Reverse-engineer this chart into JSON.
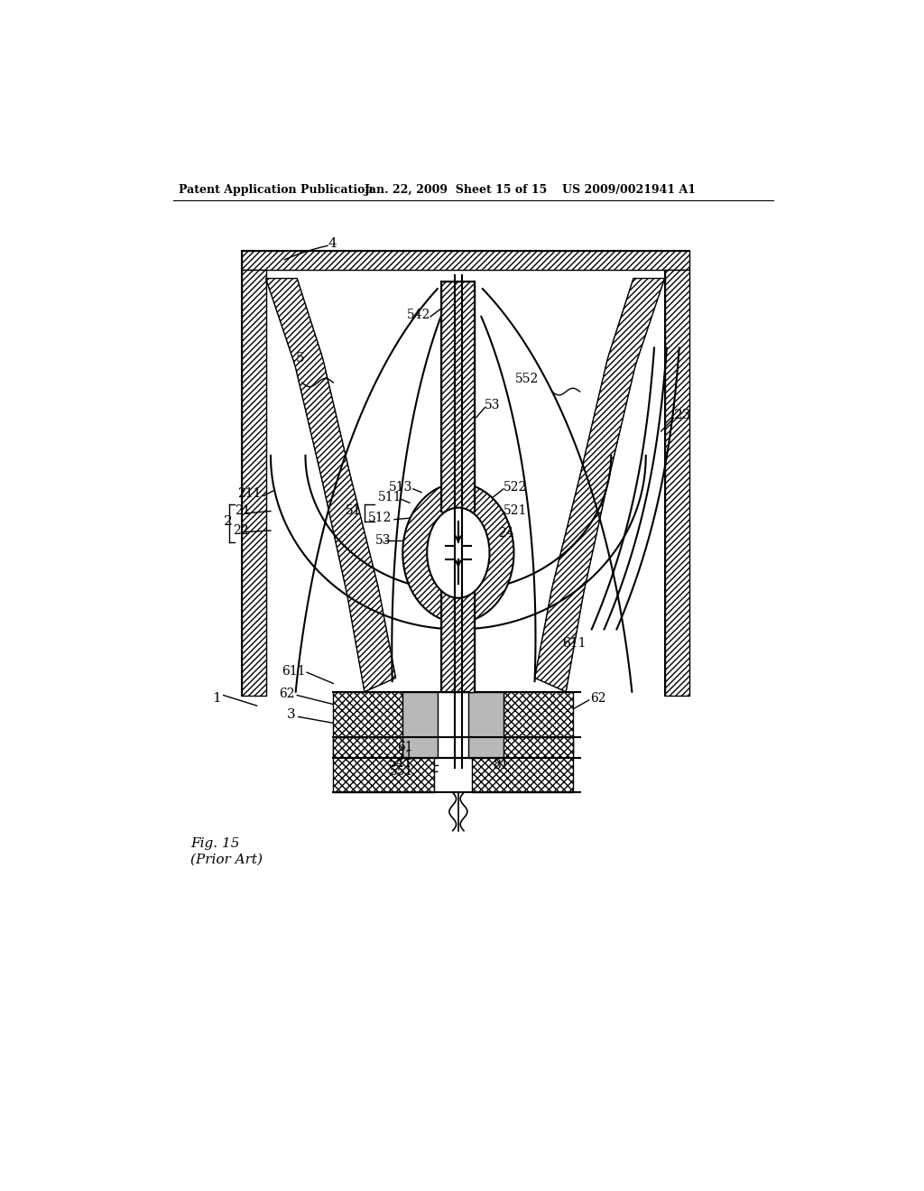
{
  "header_left": "Patent Application Publication",
  "header_mid": "Jan. 22, 2009  Sheet 15 of 15",
  "header_right": "US 2009/0021941 A1",
  "fig_label": "Fig. 15\n(Prior Art)",
  "bg_color": "#ffffff",
  "line_color": "#000000"
}
